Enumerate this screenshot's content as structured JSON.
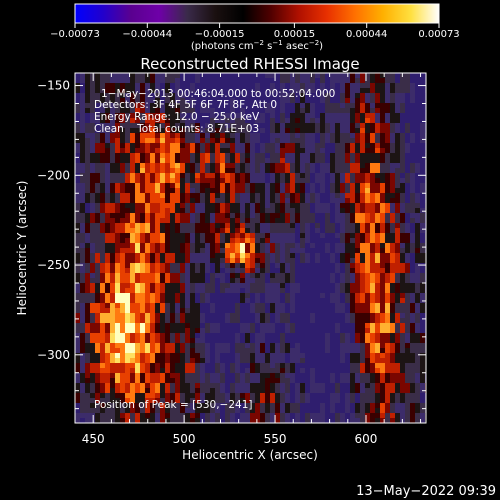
{
  "chart_data": {
    "type": "heatmap",
    "title": "Reconstructed RHESSI Image",
    "xlabel": "Heliocentric X (arcsec)",
    "ylabel": "Heliocentric Y (arcsec)",
    "xlim": [
      440,
      633
    ],
    "ylim": [
      -338,
      -143
    ],
    "x_ticks": [
      450,
      500,
      550,
      600
    ],
    "x_tick_labels": [
      "450",
      "500",
      "550",
      "600"
    ],
    "y_ticks": [
      -150,
      -200,
      -250,
      -300
    ],
    "y_tick_labels": [
      "−150",
      "−200",
      "−250",
      "−300"
    ],
    "colorbar": {
      "min": -0.00073,
      "max": 0.00073,
      "ticks": [
        -0.00073,
        -0.00044,
        -0.00015,
        0.00015,
        0.00044,
        0.00073
      ],
      "tick_labels": [
        "−0.00073",
        "−0.00044",
        "−0.00015",
        "0.00015",
        "0.00044",
        "0.00073"
      ],
      "unit_main": "(photons cm",
      "unit_sup1": "−2",
      "unit_mid1": " s",
      "unit_sup2": "−1",
      "unit_mid2": " asec",
      "unit_sup3": "−2",
      "unit_end": ")",
      "colormap": [
        "#0000ff",
        "#2200cc",
        "#5a0090",
        "#6e00a8",
        "#3a2a4a",
        "#1a1010",
        "#000000",
        "#500000",
        "#b01000",
        "#e83000",
        "#ff7000",
        "#ffb000",
        "#ffe040",
        "#ffffff"
      ]
    },
    "annotations": {
      "time_range": "1−May−2013 00:46:04.000 to 00:52:04.000",
      "detectors": "Detectors: 3F 4F 5F 6F 7F 8F, Att 0",
      "energy_range": "Energy Range: 12.0 − 25.0 keV",
      "clean_counts": "Clean    Total counts: 8.71E+03",
      "peak": "Position of Peak = [530,−241]"
    },
    "peak": {
      "x": 530,
      "y": -241
    },
    "sources": [
      {
        "x": 530,
        "y": -241,
        "sx": 9,
        "sy": 9,
        "a": 1.0
      },
      {
        "x": 478,
        "y": -225,
        "sx": 14,
        "sy": 60,
        "a": 0.75
      },
      {
        "x": 463,
        "y": -290,
        "sx": 12,
        "sy": 30,
        "a": 0.85
      },
      {
        "x": 495,
        "y": -185,
        "sx": 8,
        "sy": 20,
        "a": 0.55
      },
      {
        "x": 520,
        "y": -192,
        "sx": 9,
        "sy": 20,
        "a": 0.6
      },
      {
        "x": 600,
        "y": -215,
        "sx": 10,
        "sy": 45,
        "a": 0.75
      },
      {
        "x": 608,
        "y": -290,
        "sx": 10,
        "sy": 40,
        "a": 0.7
      },
      {
        "x": 560,
        "y": -205,
        "sx": 8,
        "sy": 35,
        "a": 0.45
      },
      {
        "x": 500,
        "y": -310,
        "sx": 18,
        "sy": 18,
        "a": 0.45
      },
      {
        "x": 550,
        "y": -320,
        "sx": 18,
        "sy": 15,
        "a": 0.4
      }
    ],
    "negative_regions": [
      {
        "x": 520,
        "y": -155,
        "sx": 30,
        "sy": 14,
        "a": -0.7
      },
      {
        "x": 575,
        "y": -280,
        "sx": 14,
        "sy": 60,
        "a": -0.65
      },
      {
        "x": 520,
        "y": -300,
        "sx": 10,
        "sy": 30,
        "a": -0.55
      },
      {
        "x": 630,
        "y": -175,
        "sx": 8,
        "sy": 30,
        "a": -0.5
      }
    ]
  },
  "timestamp": "13−May−2022 09:39"
}
